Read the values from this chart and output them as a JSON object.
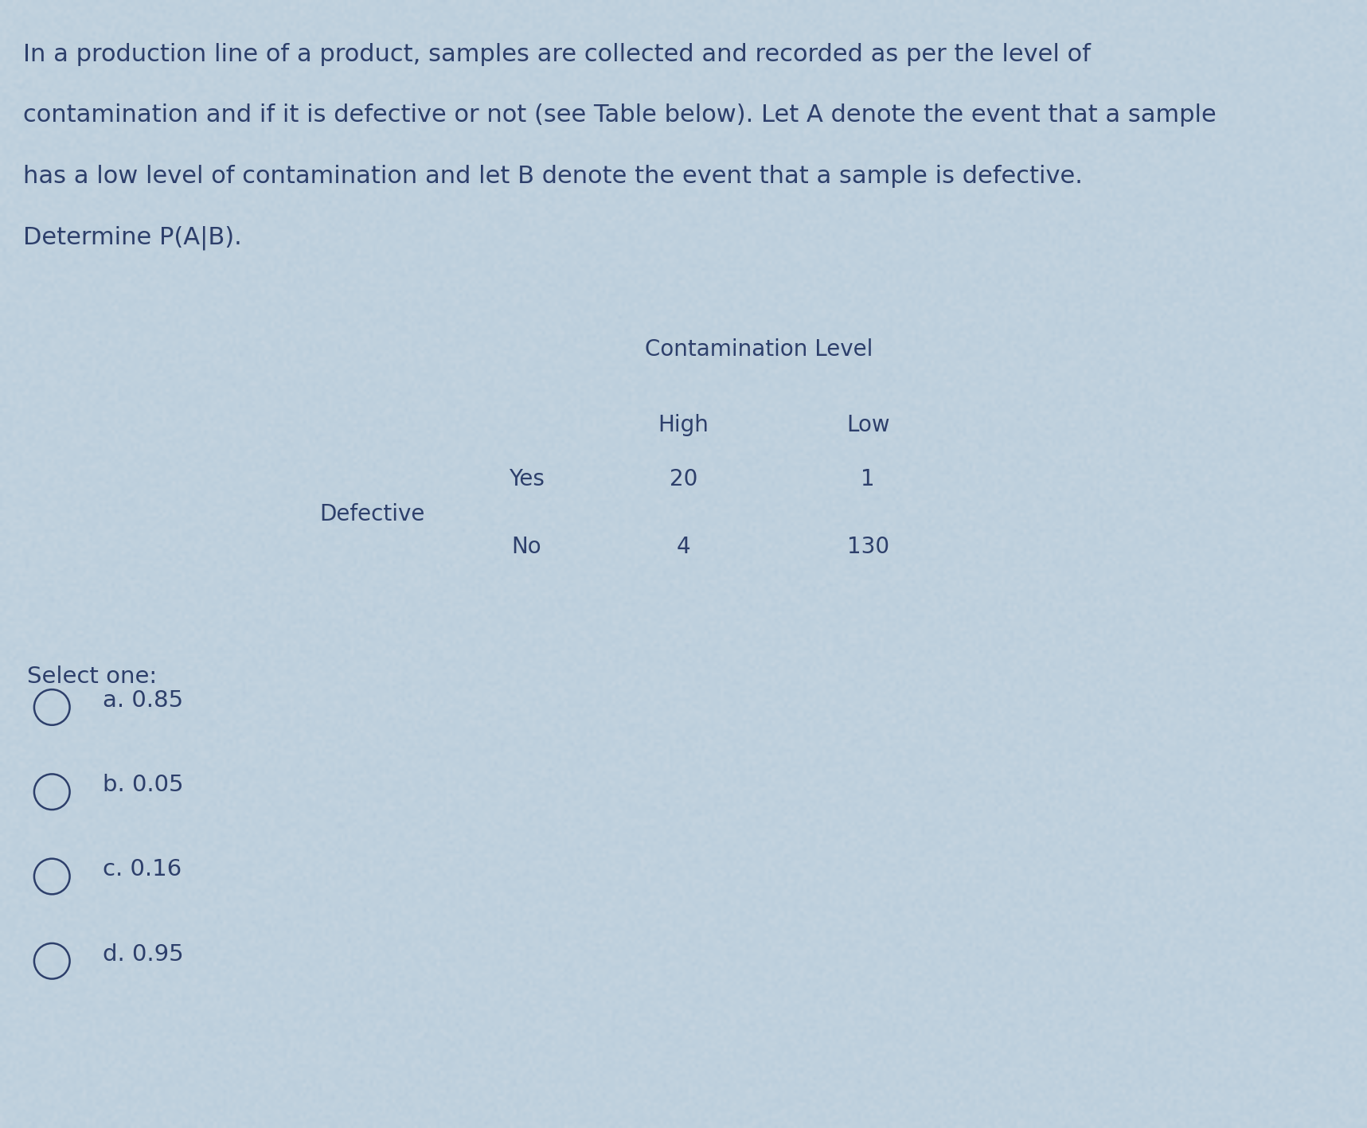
{
  "background_color": "#c5d3de",
  "text_color": "#2d3f6b",
  "paragraph_lines": [
    "In a production line of a product, samples are collected and recorded as per the level of",
    "contamination and if it is defective or not (see Table below). Let A denote the event that a sample",
    "has a low level of contamination and let B denote the event that a sample is defective.",
    "Determine P(A|B)."
  ],
  "table_header": "Contamination Level",
  "col_headers": [
    "High",
    "Low"
  ],
  "row_label_group": "Defective",
  "row_labels": [
    "Yes",
    "No"
  ],
  "table_data": [
    [
      20,
      1
    ],
    [
      4,
      130
    ]
  ],
  "select_one_label": "Select one:",
  "options": [
    "a. 0.85",
    "b. 0.05",
    "c. 0.16",
    "d. 0.95"
  ],
  "font_size_paragraph": 22,
  "font_size_table_header": 20,
  "font_size_table_data": 20,
  "font_size_options": 21,
  "font_size_select": 21,
  "fig_width": 17.17,
  "fig_height": 14.17,
  "dpi": 100
}
